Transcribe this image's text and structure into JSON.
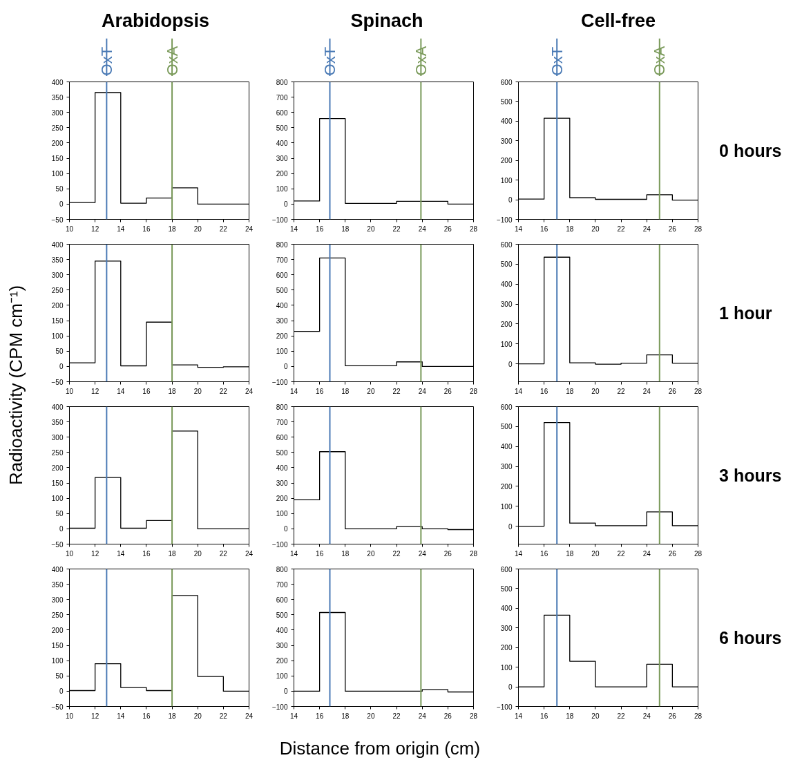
{
  "chart_data": [
    {
      "type": "histogram",
      "title": "Arabidopsis",
      "ylabel": "Radioactivity (CPM cm⁻¹)",
      "bins": [
        10,
        12,
        14,
        16,
        18,
        20,
        22,
        24
      ],
      "values": [
        5,
        365,
        3,
        20,
        53,
        0,
        0
      ],
      "color": "#000000",
      "xlim": [
        10,
        24
      ],
      "xticks": [
        10,
        12,
        14,
        16,
        18,
        20,
        22,
        24
      ],
      "ylim": [
        -50,
        400
      ],
      "yticks": [
        -50,
        0,
        50,
        100,
        150,
        200,
        250,
        300,
        350,
        400
      ],
      "ref_lines": [
        {
          "axis": "x",
          "value": 12.9,
          "label": "OxT",
          "color": "#4a7ab5"
        },
        {
          "axis": "x",
          "value": 18,
          "label": "OxA",
          "color": "#7a9a5a"
        }
      ]
    },
    {
      "type": "histogram",
      "title": "Spinach",
      "bins": [
        14,
        16,
        18,
        20,
        22,
        24,
        26,
        28
      ],
      "values": [
        20,
        560,
        5,
        5,
        18,
        18,
        0
      ],
      "color": "#000000",
      "xlim": [
        14,
        28
      ],
      "xticks": [
        14,
        16,
        18,
        20,
        22,
        24,
        26,
        28
      ],
      "ylim": [
        -100,
        800
      ],
      "yticks": [
        -100,
        0,
        100,
        200,
        300,
        400,
        500,
        600,
        700,
        800
      ],
      "ref_lines": [
        {
          "axis": "x",
          "value": 16.8,
          "label": "OxT",
          "color": "#4a7ab5"
        },
        {
          "axis": "x",
          "value": 23.9,
          "label": "OxA",
          "color": "#7a9a5a"
        }
      ]
    },
    {
      "type": "histogram",
      "title": "Cell-free",
      "annotations": [
        "0 hours"
      ],
      "bins": [
        14,
        16,
        18,
        20,
        22,
        24,
        26,
        28
      ],
      "values": [
        3,
        415,
        10,
        2,
        2,
        25,
        -2
      ],
      "color": "#000000",
      "xlim": [
        14,
        28
      ],
      "xticks": [
        14,
        16,
        18,
        20,
        22,
        24,
        26,
        28
      ],
      "ylim": [
        -100,
        600
      ],
      "yticks": [
        -100,
        0,
        100,
        200,
        300,
        400,
        500,
        600
      ],
      "ref_lines": [
        {
          "axis": "x",
          "value": 17,
          "label": "OxT",
          "color": "#4a7ab5"
        },
        {
          "axis": "x",
          "value": 25,
          "label": "OxA",
          "color": "#7a9a5a"
        }
      ]
    },
    {
      "type": "histogram",
      "bins": [
        10,
        12,
        14,
        16,
        18,
        20,
        22,
        24
      ],
      "values": [
        12,
        345,
        2,
        145,
        5,
        -3,
        -1
      ],
      "color": "#000000",
      "xlim": [
        10,
        24
      ],
      "xticks": [
        10,
        12,
        14,
        16,
        18,
        20,
        22,
        24
      ],
      "ylim": [
        -50,
        400
      ],
      "yticks": [
        -50,
        0,
        50,
        100,
        150,
        200,
        250,
        300,
        350,
        400
      ],
      "ref_lines": [
        {
          "axis": "x",
          "value": 12.9,
          "color": "#4a7ab5"
        },
        {
          "axis": "x",
          "value": 18,
          "color": "#7a9a5a"
        }
      ]
    },
    {
      "type": "histogram",
      "bins": [
        14,
        16,
        18,
        20,
        22,
        24,
        26,
        28
      ],
      "values": [
        230,
        710,
        5,
        5,
        30,
        0,
        0
      ],
      "color": "#000000",
      "xlim": [
        14,
        28
      ],
      "xticks": [
        14,
        16,
        18,
        20,
        22,
        24,
        26,
        28
      ],
      "ylim": [
        -100,
        800
      ],
      "yticks": [
        -100,
        0,
        100,
        200,
        300,
        400,
        500,
        600,
        700,
        800
      ],
      "ref_lines": [
        {
          "axis": "x",
          "value": 16.8,
          "color": "#4a7ab5"
        },
        {
          "axis": "x",
          "value": 23.9,
          "color": "#7a9a5a"
        }
      ]
    },
    {
      "type": "histogram",
      "annotations": [
        "1 hour"
      ],
      "bins": [
        14,
        16,
        18,
        20,
        22,
        24,
        26,
        28
      ],
      "values": [
        0,
        535,
        5,
        -2,
        3,
        45,
        3
      ],
      "color": "#000000",
      "xlim": [
        14,
        28
      ],
      "xticks": [
        14,
        16,
        18,
        20,
        22,
        24,
        26,
        28
      ],
      "ylim": [
        -90,
        600
      ],
      "yticks": [
        0,
        100,
        200,
        300,
        400,
        500,
        600
      ],
      "ref_lines": [
        {
          "axis": "x",
          "value": 17,
          "color": "#4a7ab5"
        },
        {
          "axis": "x",
          "value": 25,
          "color": "#7a9a5a"
        }
      ]
    },
    {
      "type": "histogram",
      "bins": [
        10,
        12,
        14,
        16,
        18,
        20,
        22,
        24
      ],
      "values": [
        2,
        168,
        2,
        27,
        320,
        0,
        0
      ],
      "color": "#000000",
      "xlim": [
        10,
        24
      ],
      "xticks": [
        10,
        12,
        14,
        16,
        18,
        20,
        22,
        24
      ],
      "ylim": [
        -50,
        400
      ],
      "yticks": [
        -50,
        0,
        50,
        100,
        150,
        200,
        250,
        300,
        350,
        400
      ],
      "ref_lines": [
        {
          "axis": "x",
          "value": 12.9,
          "color": "#4a7ab5"
        },
        {
          "axis": "x",
          "value": 18,
          "color": "#7a9a5a"
        }
      ]
    },
    {
      "type": "histogram",
      "bins": [
        14,
        16,
        18,
        20,
        22,
        24,
        26,
        28
      ],
      "values": [
        190,
        505,
        0,
        0,
        15,
        0,
        -5
      ],
      "color": "#000000",
      "xlim": [
        14,
        28
      ],
      "xticks": [
        14,
        16,
        18,
        20,
        22,
        24,
        26,
        28
      ],
      "ylim": [
        -100,
        800
      ],
      "yticks": [
        -100,
        0,
        100,
        200,
        300,
        400,
        500,
        600,
        700,
        800
      ],
      "ref_lines": [
        {
          "axis": "x",
          "value": 16.8,
          "color": "#4a7ab5"
        },
        {
          "axis": "x",
          "value": 23.9,
          "color": "#7a9a5a"
        }
      ]
    },
    {
      "type": "histogram",
      "annotations": [
        "3 hours"
      ],
      "bins": [
        14,
        16,
        18,
        20,
        22,
        24,
        26,
        28
      ],
      "values": [
        0,
        520,
        15,
        2,
        2,
        72,
        2
      ],
      "color": "#000000",
      "xlim": [
        14,
        28
      ],
      "xticks": [
        14,
        16,
        18,
        20,
        22,
        24,
        26,
        28
      ],
      "ylim": [
        -90,
        600
      ],
      "yticks": [
        0,
        100,
        200,
        300,
        400,
        500,
        600
      ],
      "ref_lines": [
        {
          "axis": "x",
          "value": 17,
          "color": "#4a7ab5"
        },
        {
          "axis": "x",
          "value": 25,
          "color": "#7a9a5a"
        }
      ]
    },
    {
      "type": "histogram",
      "bins": [
        10,
        12,
        14,
        16,
        18,
        20,
        22,
        24
      ],
      "values": [
        2,
        90,
        12,
        2,
        313,
        48,
        0
      ],
      "color": "#000000",
      "xlim": [
        10,
        24
      ],
      "xticks": [
        10,
        12,
        14,
        16,
        18,
        20,
        22,
        24
      ],
      "ylim": [
        -50,
        400
      ],
      "yticks": [
        -50,
        0,
        50,
        100,
        150,
        200,
        250,
        300,
        350,
        400
      ],
      "ref_lines": [
        {
          "axis": "x",
          "value": 12.9,
          "color": "#4a7ab5"
        },
        {
          "axis": "x",
          "value": 18,
          "color": "#7a9a5a"
        }
      ]
    },
    {
      "type": "histogram",
      "xlabel": "Distance from origin (cm)",
      "bins": [
        14,
        16,
        18,
        20,
        22,
        24,
        26,
        28
      ],
      "values": [
        0,
        515,
        0,
        0,
        0,
        10,
        -5
      ],
      "color": "#000000",
      "xlim": [
        14,
        28
      ],
      "xticks": [
        14,
        16,
        18,
        20,
        22,
        24,
        26,
        28
      ],
      "ylim": [
        -100,
        800
      ],
      "yticks": [
        -100,
        0,
        100,
        200,
        300,
        400,
        500,
        600,
        700,
        800
      ],
      "ref_lines": [
        {
          "axis": "x",
          "value": 16.8,
          "color": "#4a7ab5"
        },
        {
          "axis": "x",
          "value": 23.9,
          "color": "#7a9a5a"
        }
      ]
    },
    {
      "type": "histogram",
      "annotations": [
        "6 hours"
      ],
      "bins": [
        14,
        16,
        18,
        20,
        22,
        24,
        26,
        28
      ],
      "values": [
        0,
        365,
        130,
        0,
        0,
        115,
        0
      ],
      "color": "#000000",
      "xlim": [
        14,
        28
      ],
      "xticks": [
        14,
        16,
        18,
        20,
        22,
        24,
        26,
        28
      ],
      "ylim": [
        -100,
        600
      ],
      "yticks": [
        -100,
        0,
        100,
        200,
        300,
        400,
        500,
        600
      ],
      "ref_lines": [
        {
          "axis": "x",
          "value": 17,
          "color": "#4a7ab5"
        },
        {
          "axis": "x",
          "value": 25,
          "color": "#7a9a5a"
        }
      ]
    }
  ]
}
